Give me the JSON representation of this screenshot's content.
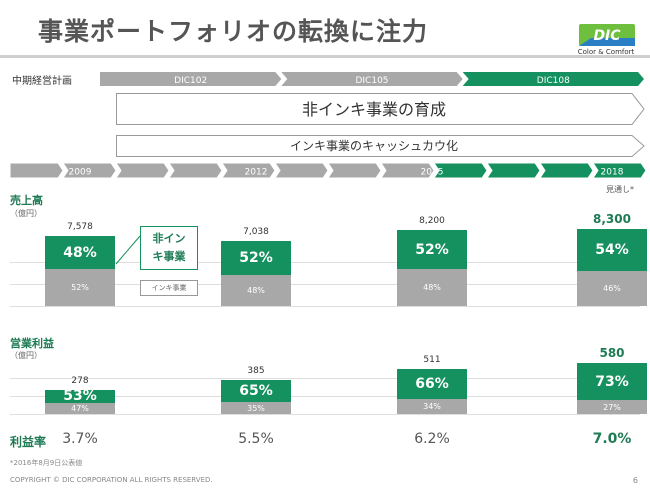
{
  "slide": {
    "title": "事業ポートフォリオの転換に注力",
    "logo_text": "DIC",
    "logo_caption": "Color & Comfort",
    "page_number": "6",
    "copyright": "COPYRIGHT © DIC CORPORATION ALL RIGHTS RESERVED.",
    "footnote": "*2016年8月9日公表値"
  },
  "plan": {
    "label": "中期経営計画",
    "phases": [
      {
        "name": "DIC102",
        "color": "#a8a8a8"
      },
      {
        "name": "DIC105",
        "color": "#a8a8a8"
      },
      {
        "name": "DIC108",
        "color": "#14915e"
      }
    ],
    "message_main": "非インキ事業の育成",
    "message_sub": "インキ事業のキャッシュカウ化"
  },
  "timeline": {
    "years": [
      "2009",
      "2012",
      "2015",
      "2018"
    ],
    "forecast_note": "見通し*"
  },
  "legend": {
    "non_ink": "非インキ事業",
    "ink": "インキ事業"
  },
  "chart_data": [
    {
      "type": "bar",
      "title": "売上高",
      "unit": "（億円）",
      "categories": [
        "2009",
        "2012",
        "2015",
        "2018"
      ],
      "values": [
        7578,
        7038,
        8200,
        8300
      ],
      "value_labels": [
        "7,578",
        "7,038",
        "8,200",
        "8,300"
      ],
      "series": [
        {
          "name": "非インキ事業",
          "values": [
            48,
            52,
            52,
            54
          ],
          "labels": [
            "48%",
            "52%",
            "52%",
            "54%"
          ],
          "color": "#14915e"
        },
        {
          "name": "インキ事業",
          "values": [
            52,
            48,
            48,
            46
          ],
          "labels": [
            "52%",
            "48%",
            "48%",
            "46%"
          ],
          "color": "#a8a8a8"
        }
      ]
    },
    {
      "type": "bar",
      "title": "営業利益",
      "unit": "（億円）",
      "categories": [
        "2009",
        "2012",
        "2015",
        "2018"
      ],
      "values": [
        278,
        385,
        511,
        580
      ],
      "value_labels": [
        "278",
        "385",
        "511",
        "580"
      ],
      "series": [
        {
          "name": "非インキ事業",
          "values": [
            53,
            65,
            66,
            73
          ],
          "labels": [
            "53%",
            "65%",
            "66%",
            "73%"
          ],
          "color": "#14915e"
        },
        {
          "name": "インキ事業",
          "values": [
            47,
            35,
            34,
            27
          ],
          "labels": [
            "47%",
            "35%",
            "34%",
            "27%"
          ],
          "color": "#a8a8a8"
        }
      ]
    }
  ],
  "margin": {
    "label": "利益率",
    "values": [
      "3.7%",
      "5.5%",
      "6.2%",
      "7.0%"
    ]
  }
}
